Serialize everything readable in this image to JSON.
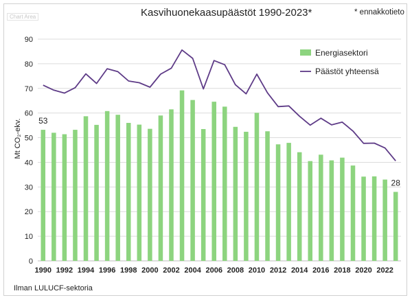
{
  "chart_area_tag": "Chart Area",
  "title": "Kasvihuonekaasupäästöt 1990-2023*",
  "note": "* ennakkotieto",
  "footnote": "Ilman LULUCF-sektoria",
  "chart_data": {
    "type": "bar",
    "title": "Kasvihuonekaasupäästöt 1990-2023*",
    "ylabel": "Mt CO₂-ekv.",
    "xlabel": "",
    "ylim": [
      0,
      90
    ],
    "yticks": [
      0,
      10,
      20,
      30,
      40,
      50,
      60,
      70,
      80,
      90
    ],
    "x": [
      1990,
      1991,
      1992,
      1993,
      1994,
      1995,
      1996,
      1997,
      1998,
      1999,
      2000,
      2001,
      2002,
      2003,
      2004,
      2005,
      2006,
      2007,
      2008,
      2009,
      2010,
      2011,
      2012,
      2013,
      2014,
      2015,
      2016,
      2017,
      2018,
      2019,
      2020,
      2021,
      2022,
      2023
    ],
    "xtick_labels": [
      "1990",
      "1992",
      "1994",
      "1996",
      "1998",
      "2000",
      "2002",
      "2004",
      "2006",
      "2008",
      "2010",
      "2012",
      "2014",
      "2016",
      "2018",
      "2020",
      "2022"
    ],
    "grid": true,
    "legend_position": "top-right",
    "series": [
      {
        "name": "Energiasektori",
        "type": "bar",
        "color": "#8dd47f",
        "values": [
          53.2,
          52.0,
          51.4,
          53.2,
          58.7,
          55.2,
          60.8,
          59.3,
          56.0,
          55.3,
          53.6,
          59.0,
          61.5,
          69.2,
          65.3,
          53.5,
          64.6,
          62.6,
          54.4,
          52.4,
          60.1,
          52.6,
          47.3,
          47.9,
          44.1,
          40.5,
          43.1,
          40.8,
          41.9,
          38.7,
          34.2,
          34.3,
          33.0,
          28.0
        ]
      },
      {
        "name": "Päästöt yhteensä",
        "type": "line",
        "color": "#5e3b87",
        "values": [
          71.3,
          69.3,
          68.1,
          70.3,
          75.9,
          72.0,
          78.0,
          76.8,
          73.0,
          72.3,
          70.5,
          75.8,
          78.2,
          85.6,
          82.2,
          69.8,
          81.3,
          79.6,
          71.5,
          67.8,
          75.8,
          68.2,
          62.6,
          62.9,
          58.7,
          55.1,
          57.9,
          55.2,
          56.3,
          52.7,
          47.7,
          47.8,
          45.8,
          40.6
        ]
      }
    ],
    "data_labels": [
      {
        "x": 1990,
        "text": "53"
      },
      {
        "x": 2023,
        "text": "28"
      }
    ]
  }
}
